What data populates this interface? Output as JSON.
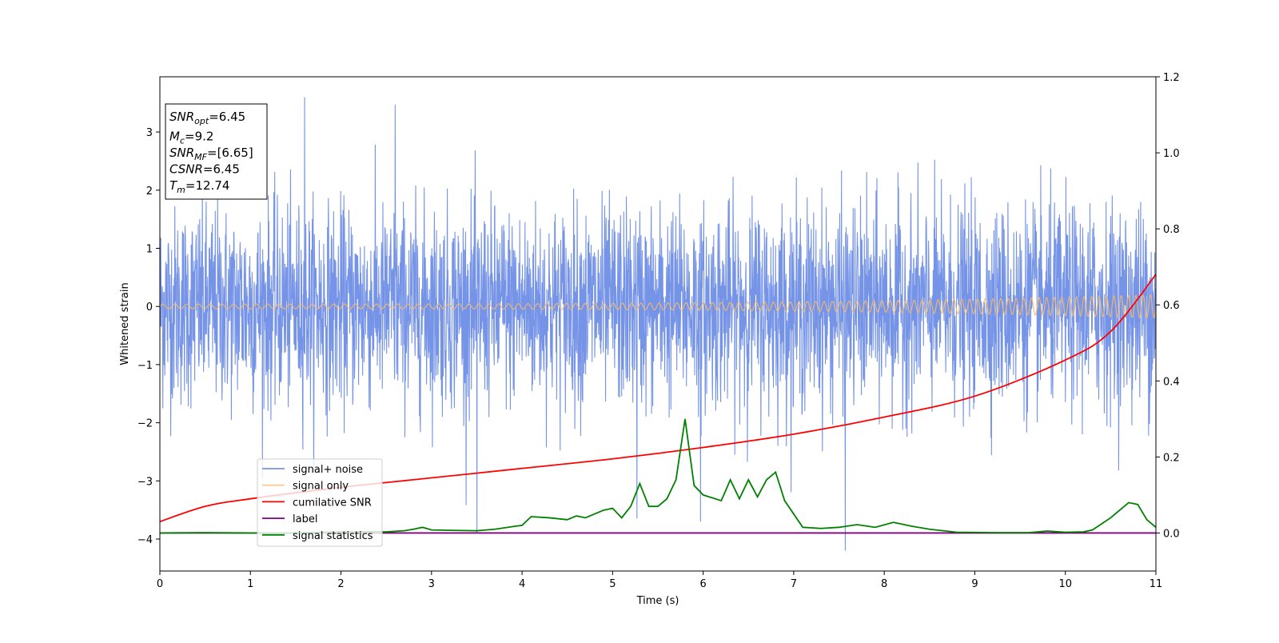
{
  "chart_data": {
    "type": "line",
    "xlabel": "Time (s)",
    "ylabel": "Whitened strain",
    "xlim": [
      0,
      11
    ],
    "ylim": [
      -4.55,
      3.95
    ],
    "y2lim": [
      -0.1,
      1.2
    ],
    "x_ticks": [
      0,
      1,
      2,
      3,
      4,
      5,
      6,
      7,
      8,
      9,
      10,
      11
    ],
    "x_tick_labels": [
      "0",
      "1",
      "2",
      "3",
      "4",
      "5",
      "6",
      "7",
      "8",
      "9",
      "10",
      "11"
    ],
    "y_ticks": [
      -4,
      -3,
      -2,
      -1,
      0,
      1,
      2,
      3
    ],
    "y_tick_labels": [
      "−4",
      "−3",
      "−2",
      "−1",
      "0",
      "1",
      "2",
      "3"
    ],
    "y2_ticks": [
      0.0,
      0.2,
      0.4,
      0.6,
      0.8,
      1.0,
      1.2
    ],
    "y2_tick_labels": [
      "0.0",
      "0.2",
      "0.4",
      "0.6",
      "0.8",
      "1.0",
      "1.2"
    ],
    "grid": false,
    "legend_position": "lower-left",
    "annotation_box": {
      "position": "top-left",
      "lines": [
        {
          "main": "SNR",
          "sub": "opt",
          "rest": "=6.45"
        },
        {
          "main": "M",
          "sub": "c",
          "rest": "=9.2"
        },
        {
          "main": "SNR",
          "sub": "MF",
          "rest": "=[6.65]"
        },
        {
          "main": "CSNR",
          "sub": "",
          "rest": "=6.45"
        },
        {
          "main": "T",
          "sub": "m",
          "rest": "=12.74"
        }
      ]
    },
    "series": [
      {
        "name": "signal+ noise",
        "axis": "left",
        "color": "#6f8ee6",
        "kind": "noise",
        "sigma": 0.85,
        "envelope": [
          -4.2,
          3.6
        ],
        "notable_spikes": [
          [
            1.6,
            3.6
          ],
          [
            2.6,
            3.47
          ],
          [
            3.5,
            -3.9
          ],
          [
            7.57,
            -4.2
          ],
          [
            5.27,
            -3.65
          ],
          [
            5.97,
            -3.7
          ]
        ]
      },
      {
        "name": "signal only",
        "axis": "left",
        "color": "#f5b86b",
        "kind": "chirp",
        "amplitude_start": 0.04,
        "amplitude_end": 0.2,
        "cycles": 110
      },
      {
        "name": "cumilative SNR",
        "axis": "right",
        "color": "#ff0000",
        "x": [
          0,
          0.5,
          1,
          2,
          3,
          4,
          5,
          6,
          7,
          8,
          9,
          10,
          10.5,
          11
        ],
        "y": [
          0.03,
          0.07,
          0.09,
          0.12,
          0.145,
          0.17,
          0.195,
          0.225,
          0.26,
          0.305,
          0.36,
          0.455,
          0.53,
          0.68
        ]
      },
      {
        "name": "label",
        "axis": "right",
        "color": "#800080",
        "x": [
          0,
          11
        ],
        "y": [
          0.0,
          0.0
        ]
      },
      {
        "name": "signal statistics",
        "axis": "right",
        "color": "#008000",
        "x": [
          0,
          0.5,
          1,
          1.5,
          2,
          2.5,
          2.7,
          2.8,
          2.9,
          3.0,
          3.2,
          3.5,
          3.7,
          3.9,
          4.0,
          4.1,
          4.3,
          4.5,
          4.6,
          4.7,
          4.8,
          4.9,
          5.0,
          5.1,
          5.2,
          5.3,
          5.4,
          5.5,
          5.6,
          5.7,
          5.8,
          5.9,
          6.0,
          6.2,
          6.3,
          6.4,
          6.5,
          6.6,
          6.7,
          6.8,
          6.9,
          7.0,
          7.1,
          7.3,
          7.5,
          7.7,
          7.9,
          8.1,
          8.3,
          8.5,
          8.8,
          9.2,
          9.6,
          9.8,
          10.0,
          10.2,
          10.3,
          10.5,
          10.6,
          10.7,
          10.8,
          10.9,
          11.0
        ],
        "y": [
          0.0,
          0.001,
          0.0,
          0.0,
          0.003,
          0.003,
          0.006,
          0.01,
          0.015,
          0.008,
          0.007,
          0.006,
          0.01,
          0.017,
          0.02,
          0.043,
          0.04,
          0.035,
          0.045,
          0.04,
          0.05,
          0.06,
          0.065,
          0.04,
          0.07,
          0.13,
          0.07,
          0.07,
          0.09,
          0.14,
          0.3,
          0.125,
          0.1,
          0.085,
          0.14,
          0.09,
          0.14,
          0.095,
          0.14,
          0.16,
          0.085,
          0.05,
          0.015,
          0.012,
          0.015,
          0.022,
          0.015,
          0.028,
          0.018,
          0.01,
          0.002,
          0.001,
          0.001,
          0.005,
          0.002,
          0.003,
          0.008,
          0.04,
          0.06,
          0.08,
          0.075,
          0.035,
          0.015
        ]
      }
    ]
  }
}
